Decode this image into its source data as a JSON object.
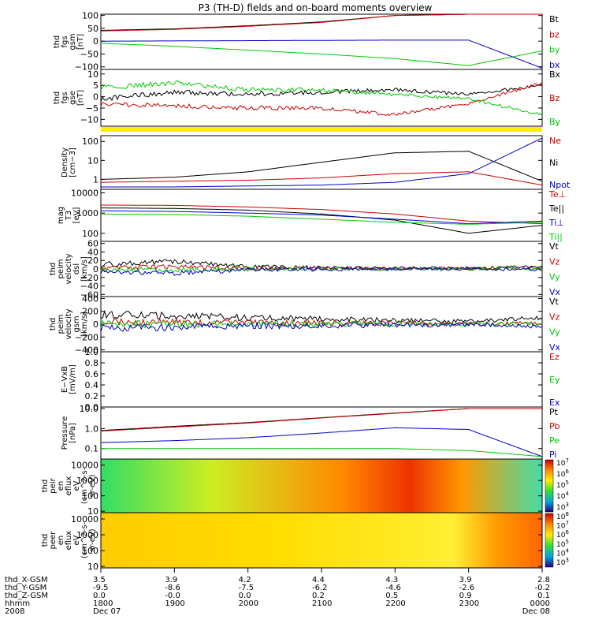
{
  "title": "P3 (TH-D) fields and on-board moments overview",
  "panels": [
    {
      "id": "fgs_gsm",
      "ylabel": [
        "thd",
        "fgs",
        "gsm",
        "[nT]"
      ],
      "ticks": [
        "100",
        "50",
        "0",
        "−50",
        "−100"
      ],
      "tick_values": [
        100,
        50,
        0,
        -50,
        -100
      ],
      "yrange": [
        -110,
        105
      ],
      "legend": [
        {
          "text": "Bt",
          "color": "#000000"
        },
        {
          "text": "bz",
          "color": "#cc0000"
        },
        {
          "text": "by",
          "color": "#00cc00"
        },
        {
          "text": "bx",
          "color": "#0000cc"
        }
      ]
    },
    {
      "id": "fgs_gse",
      "ylabel": [
        "thd",
        "fgs",
        "gse",
        "[nT]"
      ],
      "ticks": [
        "10",
        "5",
        "0",
        "−5",
        "−10"
      ],
      "tick_values": [
        10,
        5,
        0,
        -5,
        -10
      ],
      "yrange": [
        -13,
        12
      ],
      "legend": [
        {
          "text": "Bx",
          "color": "#000000"
        },
        {
          "text": "Bz",
          "color": "#cc0000"
        },
        {
          "text": "By",
          "color": "#00cc00"
        }
      ]
    },
    {
      "id": "density",
      "ylabel": [
        "Density",
        "[cm−3]"
      ],
      "ticks": [
        "100",
        "10",
        "1"
      ],
      "tick_values": [
        100,
        10,
        1
      ],
      "log": true,
      "yrange": [
        0.3,
        200
      ],
      "legend": [
        {
          "text": "Ne",
          "color": "#cc0000"
        },
        {
          "text": "Ni",
          "color": "#000000"
        },
        {
          "text": "Npot",
          "color": "#0000cc"
        }
      ]
    },
    {
      "id": "temp",
      "ylabel": [
        "mag",
        "T3",
        "[eV]"
      ],
      "ticks": [
        "10000",
        "1000",
        "100"
      ],
      "tick_values": [
        10000,
        1000,
        100
      ],
      "log": true,
      "yrange": [
        40,
        15000
      ],
      "legend": [
        {
          "text": "Te⊥",
          "color": "#cc0000"
        },
        {
          "text": "Te||",
          "color": "#000000"
        },
        {
          "text": "Ti⊥",
          "color": "#0000cc"
        },
        {
          "text": "Ti||",
          "color": "#00cc00"
        }
      ]
    },
    {
      "id": "peim_dsl",
      "ylabel": [
        "thd",
        "peim",
        "velocity",
        "dsl",
        "[km/s]"
      ],
      "ticks": [
        "60",
        "40",
        "20",
        "0",
        "−20",
        "−40",
        "−60"
      ],
      "tick_values": [
        60,
        40,
        20,
        0,
        -20,
        -40,
        -60
      ],
      "yrange": [
        -65,
        65
      ],
      "legend": [
        {
          "text": "Vt",
          "color": "#000000"
        },
        {
          "text": "Vz",
          "color": "#cc0000"
        },
        {
          "text": "Vy",
          "color": "#00cc00"
        },
        {
          "text": "Vx",
          "color": "#0000cc"
        }
      ]
    },
    {
      "id": "peim_gsm",
      "ylabel": [
        "thd",
        "peim",
        "velocity",
        "gsm",
        "[km/s]"
      ],
      "ticks": [
        "400",
        "200",
        "0",
        "−200",
        "−400"
      ],
      "tick_values": [
        400,
        200,
        0,
        -200,
        -400
      ],
      "yrange": [
        -430,
        430
      ],
      "legend": [
        {
          "text": "Vt",
          "color": "#000000"
        },
        {
          "text": "Vz",
          "color": "#cc0000"
        },
        {
          "text": "Vy",
          "color": "#00cc00"
        },
        {
          "text": "Vx",
          "color": "#0000cc"
        }
      ]
    },
    {
      "id": "exb",
      "ylabel": [
        "E−VxB",
        "[mV/m]"
      ],
      "ticks": [
        "1.0",
        "0.8",
        "0.6",
        "0.4",
        "0.2",
        "0.0"
      ],
      "tick_values": [
        1.0,
        0.8,
        0.6,
        0.4,
        0.2,
        0.0
      ],
      "yrange": [
        0,
        1
      ],
      "legend": [
        {
          "text": "Ez",
          "color": "#cc0000"
        },
        {
          "text": "Ey",
          "color": "#00cc00"
        },
        {
          "text": "Ex",
          "color": "#0000cc"
        }
      ]
    },
    {
      "id": "pressure",
      "ylabel": [
        "Pressure",
        "[nPa]"
      ],
      "ticks": [
        "10.0",
        "1.0",
        "0.1"
      ],
      "tick_values": [
        10,
        1,
        0.1
      ],
      "log": true,
      "yrange": [
        0.03,
        12
      ],
      "legend": [
        {
          "text": "Pt",
          "color": "#000000"
        },
        {
          "text": "Pb",
          "color": "#cc0000"
        },
        {
          "text": "Pe",
          "color": "#00cc00"
        },
        {
          "text": "Pi",
          "color": "#0000cc"
        }
      ]
    },
    {
      "id": "peir",
      "ylabel": [
        "thd",
        "peir",
        "en",
        "eflux",
        "eV",
        "(cm^2-s-",
        "sr-eV)"
      ],
      "ticks": [
        "10000",
        "1000",
        "100",
        "10"
      ],
      "tick_values": [
        10000,
        1000,
        100,
        10
      ],
      "log": true,
      "yrange": [
        8,
        25000
      ],
      "colorbar": [
        "10^7",
        "10^6",
        "10^5",
        "10^4",
        "10^3"
      ]
    },
    {
      "id": "peer",
      "ylabel": [
        "thd",
        "peer",
        "en",
        "eflux",
        "eV",
        "(cm^2-s-",
        "sr-eV)"
      ],
      "ticks": [
        "10000",
        "1000",
        "100",
        "10"
      ],
      "tick_values": [
        10000,
        1000,
        100,
        10
      ],
      "log": true,
      "yrange": [
        8,
        25000
      ],
      "colorbar": [
        "10^8",
        "10^7",
        "10^6",
        "10^5",
        "10^4",
        "10^3"
      ]
    }
  ],
  "axis": {
    "row_labels": [
      "thd_X-GSM",
      "thd_Y-GSM",
      "thd_Z-GSM",
      "hhmm",
      "2008"
    ],
    "columns": [
      [
        "3.5",
        "-9.5",
        "0.0",
        "1800",
        "Dec 07"
      ],
      [
        "3.9",
        "-8.6",
        "-0.0",
        "1900",
        ""
      ],
      [
        "4.2",
        "-7.5",
        "0.0",
        "2000",
        ""
      ],
      [
        "4.4",
        "-6.2",
        "0.2",
        "2100",
        ""
      ],
      [
        "4.3",
        "-4.6",
        "0.5",
        "2200",
        ""
      ],
      [
        "3.9",
        "-2.6",
        "0.9",
        "2300",
        ""
      ],
      [
        "2.8",
        "-0.2",
        "0.1",
        "0000",
        "Dec 08"
      ]
    ]
  },
  "chart_data": {
    "type": "line",
    "x": [
      "1800",
      "1900",
      "2000",
      "2100",
      "2200",
      "2300",
      "0000"
    ],
    "series": [
      {
        "panel": "fgs_gsm",
        "name": "Bt",
        "values": [
          42,
          48,
          60,
          75,
          100,
          105,
          105
        ]
      },
      {
        "panel": "fgs_gsm",
        "name": "bz",
        "values": [
          40,
          46,
          58,
          73,
          100,
          105,
          105
        ]
      },
      {
        "panel": "fgs_gsm",
        "name": "by",
        "values": [
          -8,
          -20,
          -35,
          -50,
          -68,
          -95,
          -38
        ]
      },
      {
        "panel": "fgs_gsm",
        "name": "bx",
        "values": [
          0,
          1,
          2,
          3,
          4,
          4,
          -105
        ]
      },
      {
        "panel": "fgs_gse",
        "name": "Bx",
        "values": [
          -1,
          2,
          1,
          2,
          3,
          1,
          5
        ]
      },
      {
        "panel": "fgs_gse",
        "name": "Bz",
        "values": [
          -3,
          -4,
          -5,
          -5,
          -8,
          -3,
          6
        ]
      },
      {
        "panel": "fgs_gse",
        "name": "By",
        "values": [
          4,
          6,
          3,
          3,
          1,
          -1,
          -8
        ]
      },
      {
        "panel": "density",
        "name": "Ne",
        "values": [
          0.7,
          0.8,
          0.9,
          1.2,
          2.0,
          2.5,
          0.5
        ]
      },
      {
        "panel": "density",
        "name": "Ni",
        "values": [
          1.0,
          1.3,
          2.5,
          8,
          25,
          30,
          0.8
        ]
      },
      {
        "panel": "density",
        "name": "Npot",
        "values": [
          0.4,
          0.4,
          0.45,
          0.5,
          0.7,
          2.0,
          150
        ]
      },
      {
        "panel": "temp",
        "name": "Te⊥",
        "values": [
          2500,
          2400,
          2000,
          1500,
          900,
          400,
          300
        ]
      },
      {
        "panel": "temp",
        "name": "Te||",
        "values": [
          1800,
          1700,
          1400,
          900,
          450,
          100,
          250
        ]
      },
      {
        "panel": "temp",
        "name": "Ti⊥",
        "values": [
          1300,
          1200,
          1000,
          800,
          500,
          300,
          400
        ]
      },
      {
        "panel": "temp",
        "name": "Ti||",
        "values": [
          900,
          850,
          700,
          500,
          350,
          280,
          350
        ]
      },
      {
        "panel": "peim_dsl",
        "name": "Vt",
        "values": [
          10,
          18,
          5,
          3,
          2,
          2,
          6
        ]
      },
      {
        "panel": "peim_dsl",
        "name": "Vz",
        "values": [
          2,
          5,
          2,
          1,
          1,
          1,
          3
        ]
      },
      {
        "panel": "peim_dsl",
        "name": "Vy",
        "values": [
          0,
          -3,
          0,
          0,
          0,
          0,
          1
        ]
      },
      {
        "panel": "peim_dsl",
        "name": "Vx",
        "values": [
          -5,
          -10,
          -2,
          -1,
          0,
          0,
          -2
        ]
      },
      {
        "panel": "peim_gsm",
        "name": "Vt",
        "values": [
          150,
          130,
          100,
          80,
          60,
          40,
          100
        ]
      },
      {
        "panel": "peim_gsm",
        "name": "Vz",
        "values": [
          40,
          30,
          20,
          15,
          10,
          5,
          20
        ]
      },
      {
        "panel": "peim_gsm",
        "name": "Vy",
        "values": [
          0,
          0,
          0,
          0,
          0,
          0,
          0
        ]
      },
      {
        "panel": "peim_gsm",
        "name": "Vx",
        "values": [
          -60,
          -50,
          -30,
          -20,
          -10,
          -5,
          -40
        ]
      },
      {
        "panel": "pressure",
        "name": "Pt",
        "values": [
          0.8,
          1.3,
          2.0,
          3.5,
          6.0,
          10,
          10
        ]
      },
      {
        "panel": "pressure",
        "name": "Pb",
        "values": [
          0.75,
          1.2,
          1.9,
          3.4,
          5.8,
          10,
          10
        ]
      },
      {
        "panel": "pressure",
        "name": "Pe",
        "values": [
          0.1,
          0.1,
          0.1,
          0.1,
          0.1,
          0.08,
          0.04
        ]
      },
      {
        "panel": "pressure",
        "name": "Pi",
        "values": [
          0.2,
          0.25,
          0.35,
          0.6,
          1.1,
          0.9,
          0.04
        ]
      }
    ]
  },
  "colors": {
    "black": "#000000",
    "red": "#cc0000",
    "green": "#00cc00",
    "blue": "#0000cc",
    "flag": "#ffee00"
  }
}
